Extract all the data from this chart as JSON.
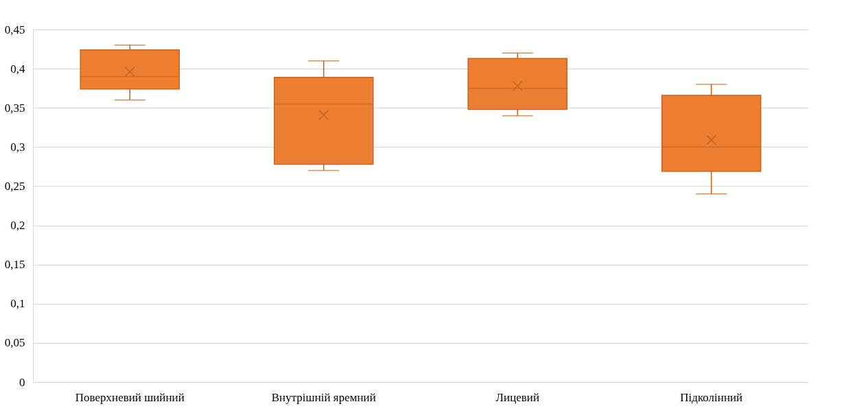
{
  "chart_data": {
    "type": "box",
    "categories": [
      "Поверхневий шийний",
      "Внутрішній яремний",
      "Лицевий",
      "Підколінний"
    ],
    "color": "#ed7d31",
    "boxes": [
      {
        "low": 0.36,
        "q1": 0.374,
        "median": 0.39,
        "q3": 0.424,
        "high": 0.43,
        "mean": 0.396
      },
      {
        "low": 0.27,
        "q1": 0.278,
        "median": 0.355,
        "q3": 0.389,
        "high": 0.41,
        "mean": 0.341
      },
      {
        "low": 0.34,
        "q1": 0.348,
        "median": 0.375,
        "q3": 0.413,
        "high": 0.42,
        "mean": 0.378
      },
      {
        "low": 0.24,
        "q1": 0.269,
        "median": 0.3,
        "q3": 0.366,
        "high": 0.38,
        "mean": 0.309
      }
    ],
    "ylim": [
      0,
      0.45
    ],
    "yticks": [
      0,
      {
        "value": 0.05,
        "label": "0,05"
      },
      {
        "value": 0.1,
        "label": "0,1"
      },
      {
        "value": 0.15,
        "label": "0,15"
      },
      {
        "value": 0.2,
        "label": "0,2"
      },
      {
        "value": 0.25,
        "label": "0,25"
      },
      {
        "value": 0.3,
        "label": "0,3"
      },
      {
        "value": 0.35,
        "label": "0,35"
      },
      {
        "value": 0.4,
        "label": "0,4"
      },
      {
        "value": 0.45,
        "label": "0,45"
      }
    ],
    "grid": "y",
    "marker": "cross"
  }
}
